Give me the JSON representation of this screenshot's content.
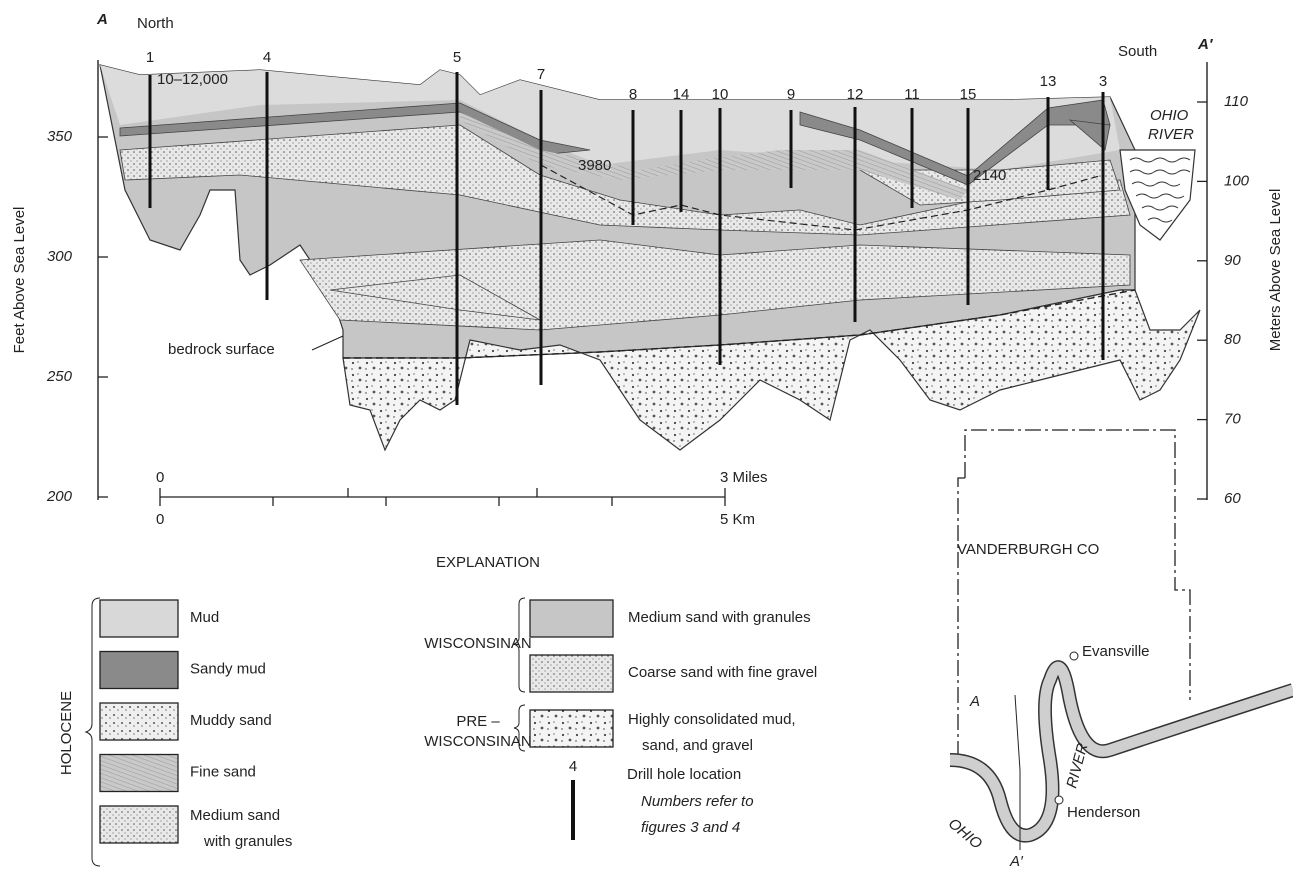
{
  "section": {
    "start_label": "A",
    "end_label": "A′",
    "north": "North",
    "south": "South",
    "left_axis": {
      "title": "Feet Above Sea Level",
      "ticks": [
        350,
        300,
        250,
        200
      ]
    },
    "right_axis": {
      "title": "Meters Above Sea Level",
      "ticks": [
        110,
        100,
        90,
        80,
        70,
        60
      ]
    },
    "drill_holes": [
      "1",
      "4",
      "5",
      "7",
      "8",
      "14",
      "10",
      "9",
      "12",
      "11",
      "15",
      "13",
      "3"
    ],
    "annotations": [
      "10–12,000",
      "3980",
      "2140",
      "bedrock surface"
    ],
    "river_label": [
      "OHIO",
      "RIVER"
    ]
  },
  "scale": {
    "miles_zero": "0",
    "miles_end": "3 Miles",
    "km_zero": "0",
    "km_end": "5 Km"
  },
  "explanation": {
    "title": "EXPLANATION",
    "groups": [
      {
        "label": "HOLOCENE",
        "items": [
          [
            "Mud"
          ],
          [
            "Sandy mud"
          ],
          [
            "Muddy sand"
          ],
          [
            "Fine sand"
          ],
          [
            "Medium sand",
            "with granules"
          ]
        ]
      },
      {
        "label": [
          "WISCONSINAN"
        ],
        "items": [
          [
            "Medium sand with granules"
          ],
          [
            "Coarse sand with fine gravel"
          ]
        ]
      },
      {
        "label": [
          "PRE –",
          "WISCONSINAN"
        ],
        "items": [
          [
            "Highly consolidated mud,",
            "sand, and gravel"
          ]
        ]
      }
    ],
    "drill_hole": {
      "number": "4",
      "label": "Drill hole location",
      "note": [
        "Numbers refer to",
        "figures 3 and 4"
      ]
    }
  },
  "map": {
    "county": "VANDERBURGH CO",
    "cities": [
      "Evansville",
      "Henderson"
    ],
    "river": [
      "OHIO",
      "RIVER"
    ],
    "labels": [
      "A",
      "A′"
    ]
  }
}
